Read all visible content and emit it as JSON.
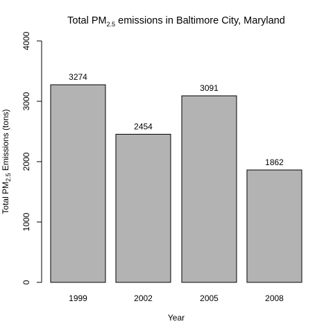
{
  "chart_data": {
    "type": "bar",
    "title_prefix": "Total PM",
    "title_subscript": "2.5",
    "title_suffix": " emissions in Baltimore City, Maryland",
    "xlabel": "Year",
    "ylabel_prefix": "Total PM",
    "ylabel_subscript": "2.5",
    "ylabel_suffix": " Emissions (tons)",
    "categories": [
      "1999",
      "2002",
      "2005",
      "2008"
    ],
    "values": [
      3274,
      2454,
      3091,
      1862
    ],
    "data_labels": [
      "3274",
      "2454",
      "3091",
      "1862"
    ],
    "ylim": [
      0,
      4000
    ],
    "yticks": [
      0,
      1000,
      2000,
      3000,
      4000
    ],
    "ytick_labels": [
      "0",
      "1000",
      "2000",
      "3000",
      "4000"
    ],
    "bar_color": "#b3b3b3",
    "bar_edge_color": "#000000",
    "grid": false,
    "legend": "none"
  }
}
